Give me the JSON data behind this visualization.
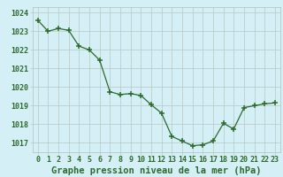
{
  "x": [
    0,
    1,
    2,
    3,
    4,
    5,
    6,
    7,
    8,
    9,
    10,
    11,
    12,
    13,
    14,
    15,
    16,
    17,
    18,
    19,
    20,
    21,
    22,
    23
  ],
  "y": [
    1023.6,
    1023.0,
    1023.15,
    1023.05,
    1022.2,
    1022.0,
    1021.45,
    1019.75,
    1019.6,
    1019.65,
    1019.55,
    1019.05,
    1018.6,
    1017.35,
    1017.1,
    1016.85,
    1016.9,
    1017.1,
    1018.05,
    1017.75,
    1018.9,
    1019.0,
    1019.1,
    1019.15
  ],
  "line_color": "#2d6a2d",
  "marker_color": "#2d6a2d",
  "bg_color": "#cce8d0",
  "plot_bg_color": "#d4eff5",
  "grid_color": "#b8c8c0",
  "axis_color": "#2d6a2d",
  "title": "Graphe pression niveau de la mer (hPa)",
  "title_color": "#2d6a2d",
  "ylim": [
    1016.5,
    1024.3
  ],
  "yticks": [
    1017,
    1018,
    1019,
    1020,
    1021,
    1022,
    1023,
    1024
  ],
  "xticks": [
    0,
    1,
    2,
    3,
    4,
    5,
    6,
    7,
    8,
    9,
    10,
    11,
    12,
    13,
    14,
    15,
    16,
    17,
    18,
    19,
    20,
    21,
    22,
    23
  ],
  "tick_fontsize": 6.0,
  "title_fontsize": 7.5
}
